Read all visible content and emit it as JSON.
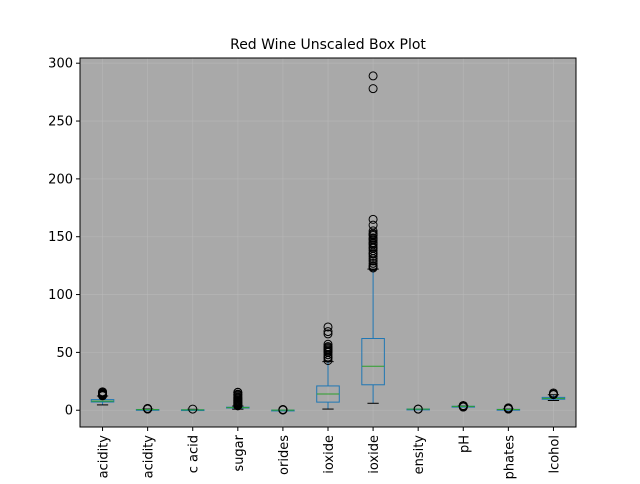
{
  "chart_data": {
    "type": "box",
    "title": "Red Wine Unscaled Box Plot",
    "xlabel": "",
    "ylabel": "",
    "ylim": [
      -14.5,
      304.5
    ],
    "yticks": [
      0,
      50,
      100,
      150,
      200,
      250,
      300
    ],
    "grid": true,
    "colors": {
      "plot_background": "#a9a9a9",
      "box": "#1f77b4",
      "median": "#2ca02c",
      "whisker_cap": "#000000",
      "flier": "#000000",
      "grid": "#bbbbbb"
    },
    "categories": [
      "acidity",
      "acidity",
      "c acid",
      "sugar",
      "orides",
      "ioxide",
      "ioxide",
      "ensity",
      "pH",
      "phates",
      "lcohol"
    ],
    "boxes": [
      {
        "q1": 7.1,
        "median": 7.9,
        "q3": 9.2,
        "whislo": 4.6,
        "whishi": 12.3,
        "fliers": [
          12.5,
          12.8,
          13.0,
          13.3,
          13.7,
          14.0,
          14.3,
          15.0,
          15.6,
          15.9
        ]
      },
      {
        "q1": 0.39,
        "median": 0.52,
        "q3": 0.64,
        "whislo": 0.12,
        "whishi": 1.01,
        "fliers": [
          1.04,
          1.1,
          1.18,
          1.24,
          1.33,
          1.58
        ]
      },
      {
        "q1": 0.09,
        "median": 0.26,
        "q3": 0.42,
        "whislo": 0.0,
        "whishi": 0.79,
        "fliers": [
          1.0
        ]
      },
      {
        "q1": 1.9,
        "median": 2.2,
        "q3": 2.6,
        "whislo": 0.9,
        "whishi": 3.6,
        "fliers": [
          3.8,
          4.2,
          4.6,
          5.1,
          5.6,
          6.2,
          6.7,
          7.3,
          7.9,
          8.6,
          9.2,
          10.0,
          10.8,
          11.5,
          12.5,
          13.4,
          13.9,
          15.4,
          15.5
        ]
      },
      {
        "q1": 0.07,
        "median": 0.079,
        "q3": 0.09,
        "whislo": 0.012,
        "whishi": 0.12,
        "fliers": [
          0.2,
          0.3,
          0.41,
          0.47,
          0.61
        ]
      },
      {
        "q1": 7,
        "median": 14,
        "q3": 21,
        "whislo": 1,
        "whishi": 42,
        "fliers": [
          43,
          45,
          46,
          48,
          50,
          51,
          52,
          53,
          54,
          55,
          57,
          66,
          68,
          72
        ]
      },
      {
        "q1": 22,
        "median": 38,
        "q3": 62,
        "whislo": 6,
        "whishi": 122,
        "fliers": [
          123,
          124,
          125,
          127,
          129,
          131,
          133,
          135,
          136,
          138,
          140,
          141,
          143,
          144,
          145,
          147,
          148,
          149,
          151,
          152,
          153,
          155,
          160,
          165,
          278,
          289
        ]
      },
      {
        "q1": 0.9956,
        "median": 0.9968,
        "q3": 0.9978,
        "whislo": 0.9922,
        "whishi": 1.001,
        "fliers": [
          0.9901,
          1.0032
        ]
      },
      {
        "q1": 3.21,
        "median": 3.31,
        "q3": 3.4,
        "whislo": 2.94,
        "whishi": 3.68,
        "fliers": [
          2.74,
          2.86,
          3.72,
          3.78,
          3.85,
          3.9,
          4.01
        ]
      },
      {
        "q1": 0.55,
        "median": 0.62,
        "q3": 0.73,
        "whislo": 0.33,
        "whishi": 1.0,
        "fliers": [
          1.02,
          1.1,
          1.2,
          1.36,
          1.59,
          1.62,
          1.95,
          2.0
        ]
      },
      {
        "q1": 9.5,
        "median": 10.2,
        "q3": 11.1,
        "whislo": 8.4,
        "whishi": 13.4,
        "fliers": [
          13.5,
          13.6,
          14.0,
          14.9
        ]
      }
    ]
  }
}
